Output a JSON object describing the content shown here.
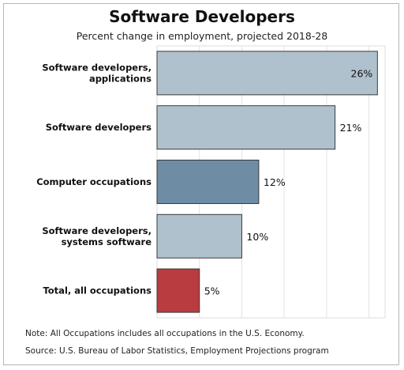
{
  "chart_data": {
    "type": "bar",
    "orientation": "horizontal",
    "title": "Software Developers",
    "subtitle": "Percent change in employment, projected 2018-28",
    "categories": [
      [
        "Software developers,",
        "applications"
      ],
      [
        "Software developers"
      ],
      [
        "Computer occupations"
      ],
      [
        "Software developers,",
        "systems software"
      ],
      [
        "Total, all occupations"
      ]
    ],
    "values": [
      26,
      21,
      12,
      10,
      5
    ],
    "value_labels": [
      "26%",
      "21%",
      "12%",
      "10%",
      "5%"
    ],
    "bar_colors": [
      "#afc1cd",
      "#afc1cd",
      "#6e8ca3",
      "#afc1cd",
      "#b83c40"
    ],
    "xlim": [
      0,
      26.9
    ],
    "grid": true,
    "legend": "none"
  },
  "notes": {
    "note": "Note: All Occupations includes all occupations in the U.S. Economy.",
    "source": "Source: U.S. Bureau of Labor Statistics, Employment Projections program"
  }
}
